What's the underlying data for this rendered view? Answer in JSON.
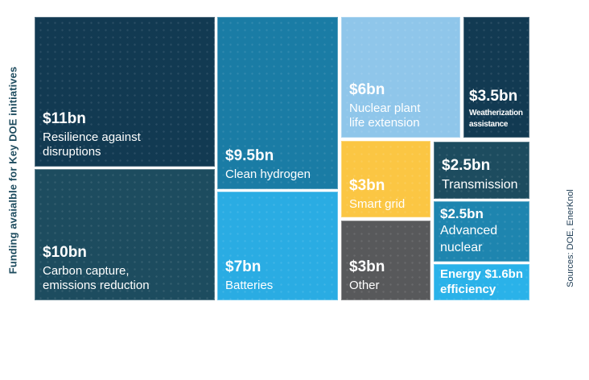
{
  "axis_title": "Funding avaialble for Key DOE initiatives",
  "source_note": "Sources: DOE, EnerKnol",
  "chart_data": {
    "type": "treemap",
    "title": "Funding avaialble for Key DOE initiatives",
    "value_unit": "$bn",
    "legend": "none",
    "tiles": [
      {
        "id": "resilience",
        "value": 11,
        "value_label": "$11bn",
        "name": "Resilience against disruptions",
        "name_lines": [
          "Resilience against",
          "disruptions"
        ],
        "color": "#123A52"
      },
      {
        "id": "carbon_capture",
        "value": 10,
        "value_label": "$10bn",
        "name": "Carbon capture, emissions reduction",
        "name_lines": [
          "Carbon capture,",
          "emissions reduction"
        ],
        "color": "#1D4C5F"
      },
      {
        "id": "clean_hydrogen",
        "value": 9.5,
        "value_label": "$9.5bn",
        "name": "Clean hydrogen",
        "name_lines": [
          "Clean hydrogen"
        ],
        "color": "#1A7CA5"
      },
      {
        "id": "batteries",
        "value": 7,
        "value_label": "$7bn",
        "name": "Batteries",
        "name_lines": [
          "Batteries"
        ],
        "color": "#2AACE3"
      },
      {
        "id": "nuclear_plant_life_extension",
        "value": 6,
        "value_label": "$6bn",
        "name": "Nuclear plant life extension",
        "name_lines": [
          "Nuclear plant",
          "life extension"
        ],
        "color": "#8FC6EA"
      },
      {
        "id": "weatherization_assistance",
        "value": 3.5,
        "value_label": "$3.5bn",
        "name": "Weatherization assistance",
        "name_lines": [
          "Weatherization",
          "assistance"
        ],
        "color": "#123A52"
      },
      {
        "id": "smart_grid",
        "value": 3,
        "value_label": "$3bn",
        "name": "Smart grid",
        "name_lines": [
          "Smart grid"
        ],
        "color": "#FBC643"
      },
      {
        "id": "other",
        "value": 3,
        "value_label": "$3bn",
        "name": "Other",
        "name_lines": [
          "Other"
        ],
        "color": "#58595B"
      },
      {
        "id": "transmission",
        "value": 2.5,
        "value_label": "$2.5bn",
        "name": "Transmission",
        "name_lines": [
          "Transmission"
        ],
        "color": "#1D4C5F"
      },
      {
        "id": "advanced_nuclear",
        "value": 2.5,
        "value_label": "$2.5bn",
        "name": "Advanced nuclear",
        "name_lines": [
          "Advanced",
          "nuclear"
        ],
        "color": "#1E85AF"
      },
      {
        "id": "energy_efficiency",
        "value": 1.6,
        "value_label": "$1.6bn",
        "name": "Energy efficiency",
        "name_lines": [
          "Energy",
          "efficiency"
        ],
        "color": "#2AB2E9"
      }
    ]
  }
}
